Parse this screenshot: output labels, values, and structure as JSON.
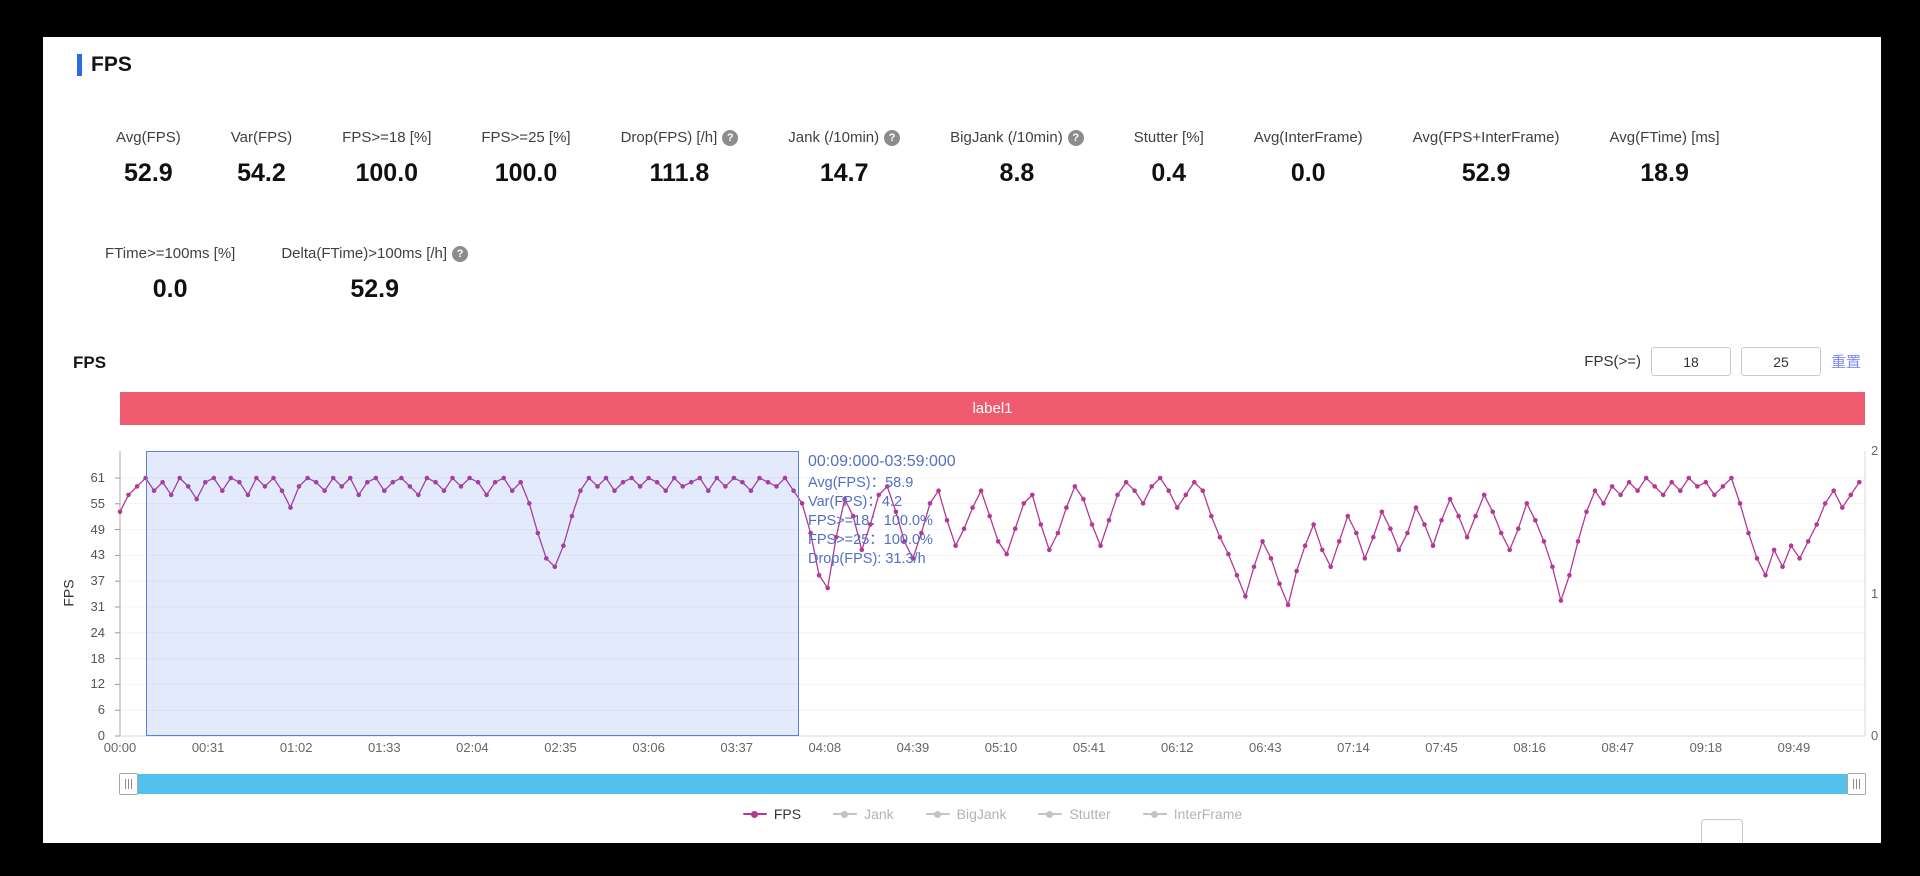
{
  "header": {
    "title": "FPS"
  },
  "metrics": [
    {
      "label": "Avg(FPS)",
      "value": "52.9",
      "help": false
    },
    {
      "label": "Var(FPS)",
      "value": "54.2",
      "help": false
    },
    {
      "label": "FPS>=18 [%]",
      "value": "100.0",
      "help": false
    },
    {
      "label": "FPS>=25 [%]",
      "value": "100.0",
      "help": false
    },
    {
      "label": "Drop(FPS) [/h]",
      "value": "111.8",
      "help": true
    },
    {
      "label": "Jank (/10min)",
      "value": "14.7",
      "help": true
    },
    {
      "label": "BigJank (/10min)",
      "value": "8.8",
      "help": true
    },
    {
      "label": "Stutter [%]",
      "value": "0.4",
      "help": false
    },
    {
      "label": "Avg(InterFrame)",
      "value": "0.0",
      "help": false
    },
    {
      "label": "Avg(FPS+InterFrame)",
      "value": "52.9",
      "help": false
    },
    {
      "label": "Avg(FTime) [ms]",
      "value": "18.9",
      "help": false
    }
  ],
  "metrics_row2": [
    {
      "label": "FTime>=100ms [%]",
      "value": "0.0",
      "help": false
    },
    {
      "label": "Delta(FTime)>100ms [/h]",
      "value": "52.9",
      "help": true
    }
  ],
  "chart_header": {
    "title": "FPS",
    "filter_label": "FPS(>=)",
    "filter_low": "18",
    "filter_high": "25",
    "reset_label": "重置"
  },
  "banner": {
    "label": "label1",
    "color": "#ee5a6e"
  },
  "tooltip": {
    "range": "00:09:000-03:59:000",
    "lines": [
      "Avg(FPS)：58.9",
      "Var(FPS)：4.2",
      "FPS>=18：100.0%",
      "FPS>=25：100.0%",
      "Drop(FPS): 31.3/h"
    ]
  },
  "legend": [
    {
      "label": "FPS",
      "color": "#b43894",
      "active": true
    },
    {
      "label": "Jank",
      "color": "#c4c4c4",
      "active": false
    },
    {
      "label": "BigJank",
      "color": "#c4c4c4",
      "active": false
    },
    {
      "label": "Stutter",
      "color": "#c4c4c4",
      "active": false
    },
    {
      "label": "InterFrame",
      "color": "#c4c4c4",
      "active": false
    }
  ],
  "chart_data": {
    "type": "line",
    "title": "FPS",
    "ylabel": "FPS",
    "ylim": [
      0,
      61
    ],
    "grid": true,
    "legend_position": "bottom",
    "y_ticks": [
      61,
      55,
      49,
      43,
      37,
      31,
      24,
      18,
      12,
      6,
      0
    ],
    "right_y_ticks": [
      2,
      1,
      0
    ],
    "x_ticks": [
      "00:00",
      "00:31",
      "01:02",
      "01:33",
      "02:04",
      "02:35",
      "03:06",
      "03:37",
      "04:08",
      "04:39",
      "05:10",
      "05:41",
      "06:12",
      "06:43",
      "07:14",
      "07:45",
      "08:16",
      "08:47",
      "09:18",
      "09:49"
    ],
    "x_interval_seconds": 3,
    "x_span_seconds": 614,
    "selection_region": {
      "start_s": 9,
      "end_s": 239,
      "start_label": "00:09:000",
      "end_label": "03:59:000"
    },
    "series": [
      {
        "name": "FPS",
        "color": "#b43894",
        "values": [
          53,
          57,
          59,
          61,
          58,
          60,
          57,
          61,
          59,
          56,
          60,
          61,
          58,
          61,
          60,
          57,
          61,
          59,
          61,
          58,
          54,
          59,
          61,
          60,
          58,
          61,
          59,
          61,
          57,
          60,
          61,
          58,
          60,
          61,
          59,
          57,
          61,
          60,
          58,
          61,
          59,
          61,
          60,
          57,
          60,
          61,
          58,
          60,
          55,
          48,
          42,
          40,
          45,
          52,
          58,
          61,
          59,
          61,
          58,
          60,
          61,
          59,
          61,
          60,
          58,
          61,
          59,
          60,
          61,
          58,
          61,
          59,
          61,
          60,
          58,
          61,
          60,
          59,
          61,
          58,
          55,
          48,
          38,
          35,
          47,
          56,
          52,
          44,
          50,
          57,
          59,
          53,
          46,
          42,
          48,
          55,
          58,
          51,
          45,
          49,
          54,
          58,
          52,
          46,
          43,
          49,
          55,
          57,
          50,
          44,
          48,
          54,
          59,
          56,
          50,
          45,
          51,
          57,
          60,
          58,
          55,
          59,
          61,
          58,
          54,
          57,
          60,
          58,
          52,
          47,
          43,
          38,
          33,
          40,
          46,
          42,
          36,
          31,
          39,
          45,
          50,
          44,
          40,
          46,
          52,
          48,
          42,
          47,
          53,
          49,
          44,
          48,
          54,
          50,
          45,
          51,
          56,
          52,
          47,
          52,
          57,
          53,
          48,
          44,
          49,
          55,
          51,
          46,
          40,
          32,
          38,
          46,
          53,
          58,
          55,
          59,
          57,
          60,
          58,
          61,
          59,
          57,
          60,
          58,
          61,
          59,
          60,
          57,
          59,
          61,
          55,
          48,
          42,
          38,
          44,
          40,
          45,
          42,
          46,
          50,
          55,
          58,
          54,
          57,
          60
        ]
      }
    ]
  }
}
